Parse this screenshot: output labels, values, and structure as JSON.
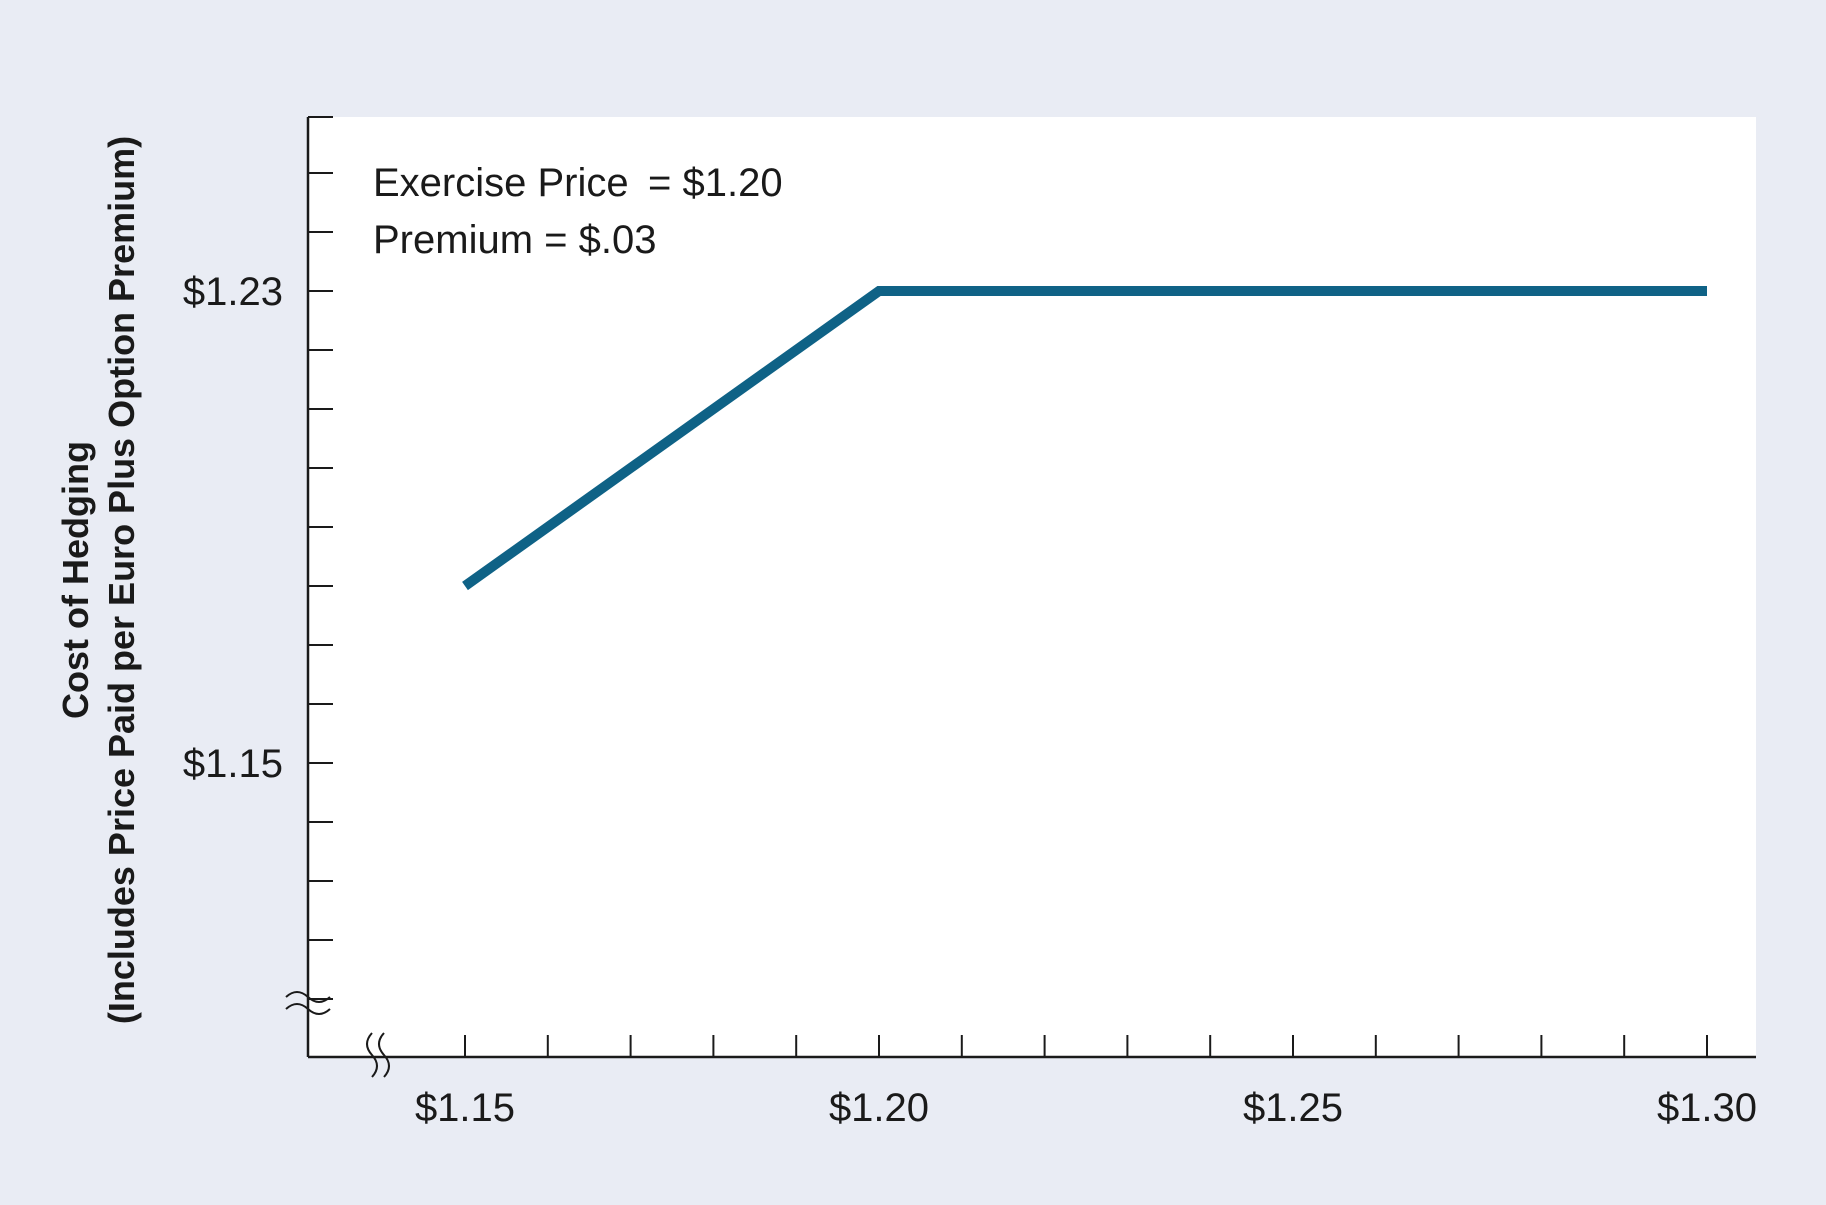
{
  "colors": {
    "background": "#e9ecf4",
    "plot_area": "#ffffff",
    "line": "#0f6286",
    "axis": "#1a1a1a"
  },
  "chart_data": {
    "type": "line",
    "title": "",
    "xlabel": "",
    "ylabel": {
      "line1": "Cost of Hedging",
      "line2": "(Includes Price Paid per Euro Plus Option Premium)"
    },
    "annotations": {
      "exercise_label": "Exercise Price",
      "exercise_value": "= $1.20",
      "premium_line": "Premium = $.03"
    },
    "x_ticks": [
      {
        "value": 1.15,
        "label": "$1.15"
      },
      {
        "value": 1.2,
        "label": "$1.20"
      },
      {
        "value": 1.25,
        "label": "$1.25"
      },
      {
        "value": 1.3,
        "label": "$1.30"
      }
    ],
    "y_ticks": [
      {
        "value": 1.15,
        "label": "$1.15"
      },
      {
        "value": 1.23,
        "label": "$1.23"
      }
    ],
    "x_minor_step": 0.01,
    "y_minor_step": 0.01,
    "xlim": [
      1.131,
      1.306
    ],
    "ylim": [
      1.1,
      1.26
    ],
    "axis_breaks": true,
    "grid": false,
    "series": [
      {
        "x": [
          1.15,
          1.2,
          1.3
        ],
        "y": [
          1.18,
          1.23,
          1.23
        ]
      }
    ]
  }
}
